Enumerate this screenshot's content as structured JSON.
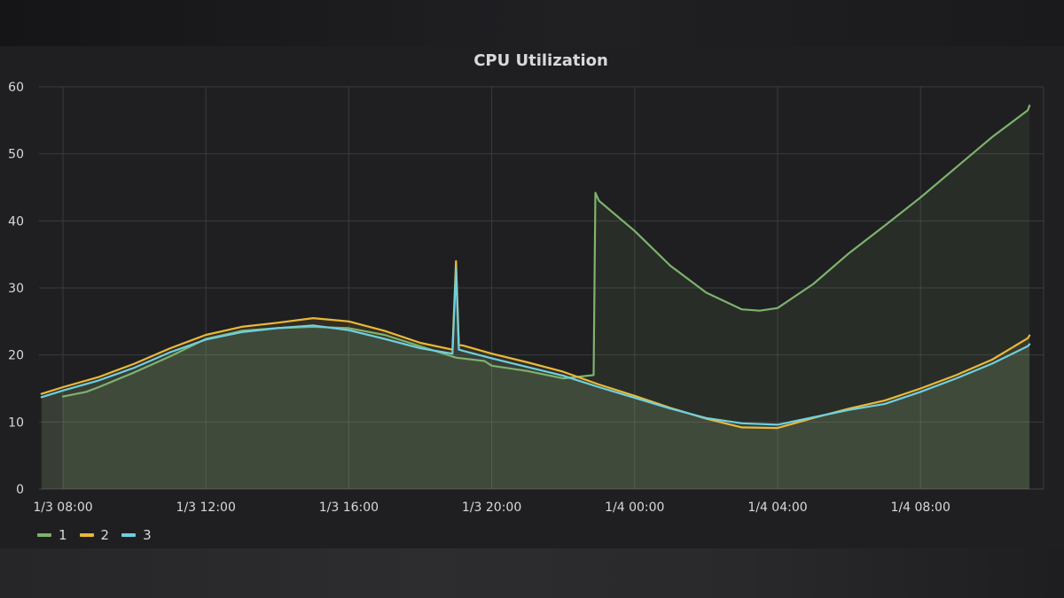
{
  "chart_data": {
    "type": "area",
    "title": "CPU Utilization",
    "xlabel": "",
    "ylabel": "",
    "x_unit": "hours",
    "xlim": [
      "1/3 07:35",
      "1/4 11:40"
    ],
    "ylim": [
      0,
      60
    ],
    "y_ticks": [
      0,
      10,
      20,
      30,
      40,
      50,
      60
    ],
    "x_ticks": [
      {
        "t": 0,
        "label": "1/3 08:00"
      },
      {
        "t": 4,
        "label": "1/3 12:00"
      },
      {
        "t": 8,
        "label": "1/3 16:00"
      },
      {
        "t": 12,
        "label": "1/3 20:00"
      },
      {
        "t": 16,
        "label": "1/4 00:00"
      },
      {
        "t": 20,
        "label": "1/4 04:00"
      },
      {
        "t": 24,
        "label": "1/4 08:00"
      }
    ],
    "grid": true,
    "legend": "bottom-left",
    "series": [
      {
        "name": "1",
        "color": "#7eb26d",
        "x": [
          0,
          0.65,
          1,
          2,
          3,
          4,
          5,
          6,
          7,
          8,
          9,
          10,
          11,
          11.8,
          12,
          13,
          14,
          14.85,
          14.9,
          15,
          16,
          17,
          18,
          19,
          19.5,
          20,
          21,
          22,
          23,
          24,
          25,
          26,
          27,
          27.05
        ],
        "values": [
          13.8,
          14.5,
          15.2,
          17.4,
          19.8,
          22.4,
          23.6,
          24.0,
          24.2,
          24.0,
          23.0,
          21.3,
          19.6,
          19.1,
          18.4,
          17.6,
          16.5,
          17.0,
          44.2,
          43.0,
          38.5,
          33.3,
          29.3,
          26.8,
          26.6,
          27.0,
          30.6,
          35.2,
          39.3,
          43.5,
          48.0,
          52.5,
          56.5,
          57.2
        ]
      },
      {
        "name": "2",
        "color": "#eab839",
        "x": [
          -0.6,
          0,
          1,
          2,
          3,
          4,
          5,
          6,
          7,
          8,
          9,
          10,
          10.9,
          11.0,
          11.08,
          11.2,
          12,
          13,
          14,
          15,
          16,
          17,
          18,
          19,
          20,
          21,
          22,
          23,
          24,
          25,
          26,
          27,
          27.05
        ],
        "values": [
          14.2,
          15.2,
          16.7,
          18.7,
          21.0,
          23.0,
          24.2,
          24.8,
          25.5,
          25.0,
          23.6,
          21.8,
          20.8,
          34.0,
          21.5,
          21.4,
          20.2,
          18.9,
          17.5,
          15.6,
          13.9,
          12.1,
          10.5,
          9.2,
          9.1,
          10.6,
          12.0,
          13.2,
          15.0,
          17.0,
          19.3,
          22.5,
          22.9
        ]
      },
      {
        "name": "3",
        "color": "#6ed0e0",
        "x": [
          -0.6,
          0,
          1,
          2,
          3,
          4,
          5,
          6,
          7,
          8,
          9,
          10,
          10.9,
          11.0,
          11.08,
          11.2,
          12,
          13,
          14,
          15,
          16,
          17,
          18,
          19,
          20,
          21,
          22,
          23,
          24,
          25,
          26,
          27,
          27.05
        ],
        "values": [
          13.7,
          14.7,
          16.2,
          18.1,
          20.4,
          22.3,
          23.4,
          24.0,
          24.4,
          23.7,
          22.4,
          21.0,
          20.2,
          32.8,
          20.8,
          20.6,
          19.5,
          18.2,
          16.9,
          15.2,
          13.6,
          12.0,
          10.6,
          9.8,
          9.6,
          10.7,
          11.8,
          12.7,
          14.5,
          16.5,
          18.7,
          21.3,
          21.6
        ]
      }
    ]
  }
}
